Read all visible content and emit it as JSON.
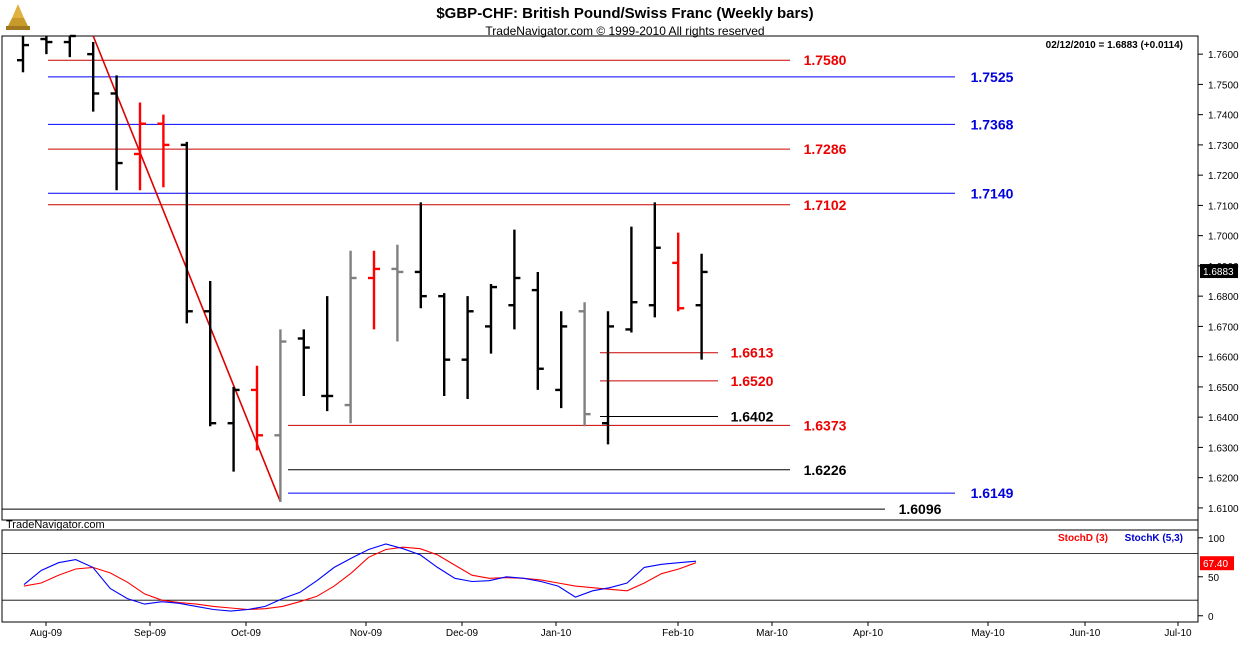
{
  "header": {
    "title": "$GBP-CHF:  British Pound/Swiss Franc  (Weekly bars)",
    "copyright": "TradeNavigator.com © 1999-2010 All rights reserved",
    "last_info": "02/12/2010 = 1.6883 (+0.0114)",
    "watermark": "TradeNavigator.com"
  },
  "colors": {
    "up_bar": "#000000",
    "down_bar": "#ff0000",
    "neutral_bar": "#808080",
    "support_line": "#0000ff",
    "resistance_line": "#cc0000",
    "trendline": "#dd0000",
    "stochD": "#ff0000",
    "stochK": "#0000ff"
  },
  "chart_data": [
    {
      "type": "ohlc",
      "title": "$GBP-CHF:  British Pound/Swiss Franc  (Weekly bars)",
      "ylim": [
        1.606,
        1.766
      ],
      "y_ticks": [
        "1.6100",
        "1.6200",
        "1.6300",
        "1.6400",
        "1.6500",
        "1.6600",
        "1.6700",
        "1.6800",
        "1.6900",
        "1.7000",
        "1.7100",
        "1.7200",
        "1.7300",
        "1.7400",
        "1.7500",
        "1.7600"
      ],
      "x_labels": [
        "Aug-09",
        "Sep-09",
        "Oct-09",
        "Nov-09",
        "Dec-09",
        "Jan-10",
        "Feb-10",
        "Mar-10",
        "Apr-10",
        "May-10",
        "Jun-10",
        "Jul-10"
      ],
      "last_price": "1.6883",
      "bars": [
        {
          "week": 0,
          "open": 1.758,
          "high": 1.767,
          "low": 1.754,
          "close": 1.763,
          "color": "black"
        },
        {
          "week": 1,
          "open": 1.765,
          "high": 1.769,
          "low": 1.76,
          "close": 1.764,
          "color": "black"
        },
        {
          "week": 2,
          "open": 1.764,
          "high": 1.768,
          "low": 1.759,
          "close": 1.766,
          "color": "black"
        },
        {
          "week": 3,
          "open": 1.76,
          "high": 1.764,
          "low": 1.741,
          "close": 1.747,
          "color": "black"
        },
        {
          "week": 4,
          "open": 1.747,
          "high": 1.753,
          "low": 1.715,
          "close": 1.724,
          "color": "black"
        },
        {
          "week": 5,
          "open": 1.727,
          "high": 1.744,
          "low": 1.715,
          "close": 1.737,
          "color": "red"
        },
        {
          "week": 6,
          "open": 1.737,
          "high": 1.74,
          "low": 1.716,
          "close": 1.73,
          "color": "red"
        },
        {
          "week": 7,
          "open": 1.73,
          "high": 1.731,
          "low": 1.671,
          "close": 1.675,
          "color": "black"
        },
        {
          "week": 8,
          "open": 1.675,
          "high": 1.685,
          "low": 1.637,
          "close": 1.638,
          "color": "black"
        },
        {
          "week": 9,
          "open": 1.638,
          "high": 1.65,
          "low": 1.622,
          "close": 1.649,
          "color": "black"
        },
        {
          "week": 10,
          "open": 1.649,
          "high": 1.657,
          "low": 1.629,
          "close": 1.634,
          "color": "red"
        },
        {
          "week": 11,
          "open": 1.634,
          "high": 1.669,
          "low": 1.612,
          "close": 1.665,
          "color": "gray"
        },
        {
          "week": 12,
          "open": 1.666,
          "high": 1.669,
          "low": 1.647,
          "close": 1.663,
          "color": "black"
        },
        {
          "week": 13,
          "open": 1.647,
          "high": 1.68,
          "low": 1.642,
          "close": 1.647,
          "color": "black"
        },
        {
          "week": 14,
          "open": 1.644,
          "high": 1.695,
          "low": 1.638,
          "close": 1.686,
          "color": "gray"
        },
        {
          "week": 15,
          "open": 1.686,
          "high": 1.695,
          "low": 1.669,
          "close": 1.689,
          "color": "red"
        },
        {
          "week": 16,
          "open": 1.689,
          "high": 1.697,
          "low": 1.665,
          "close": 1.688,
          "color": "gray"
        },
        {
          "week": 17,
          "open": 1.688,
          "high": 1.711,
          "low": 1.676,
          "close": 1.68,
          "color": "black"
        },
        {
          "week": 18,
          "open": 1.68,
          "high": 1.681,
          "low": 1.647,
          "close": 1.659,
          "color": "black"
        },
        {
          "week": 19,
          "open": 1.659,
          "high": 1.68,
          "low": 1.646,
          "close": 1.675,
          "color": "black"
        },
        {
          "week": 20,
          "open": 1.67,
          "high": 1.684,
          "low": 1.661,
          "close": 1.683,
          "color": "black"
        },
        {
          "week": 21,
          "open": 1.677,
          "high": 1.702,
          "low": 1.669,
          "close": 1.686,
          "color": "black"
        },
        {
          "week": 22,
          "open": 1.682,
          "high": 1.688,
          "low": 1.649,
          "close": 1.656,
          "color": "black"
        },
        {
          "week": 23,
          "open": 1.649,
          "high": 1.675,
          "low": 1.643,
          "close": 1.67,
          "color": "black"
        },
        {
          "week": 24,
          "open": 1.675,
          "high": 1.678,
          "low": 1.637,
          "close": 1.641,
          "color": "gray"
        },
        {
          "week": 25,
          "open": 1.638,
          "high": 1.675,
          "low": 1.631,
          "close": 1.67,
          "color": "black"
        },
        {
          "week": 26,
          "open": 1.669,
          "high": 1.703,
          "low": 1.668,
          "close": 1.678,
          "color": "black"
        },
        {
          "week": 27,
          "open": 1.677,
          "high": 1.711,
          "low": 1.673,
          "close": 1.696,
          "color": "black"
        },
        {
          "week": 28,
          "open": 1.691,
          "high": 1.701,
          "low": 1.675,
          "close": 1.676,
          "color": "red"
        },
        {
          "week": 29,
          "open": 1.677,
          "high": 1.694,
          "low": 1.659,
          "close": 1.688,
          "color": "black"
        }
      ],
      "levels": [
        {
          "value": 1.758,
          "label": "1.7580",
          "color": "red"
        },
        {
          "value": 1.7525,
          "label": "1.7525",
          "color": "blue"
        },
        {
          "value": 1.7368,
          "label": "1.7368",
          "color": "blue"
        },
        {
          "value": 1.7286,
          "label": "1.7286",
          "color": "red"
        },
        {
          "value": 1.714,
          "label": "1.7140",
          "color": "blue"
        },
        {
          "value": 1.7102,
          "label": "1.7102",
          "color": "red"
        },
        {
          "value": 1.6613,
          "label": "1.6613",
          "color": "red"
        },
        {
          "value": 1.652,
          "label": "1.6520",
          "color": "red"
        },
        {
          "value": 1.6402,
          "label": "1.6402",
          "color": "black"
        },
        {
          "value": 1.6373,
          "label": "1.6373",
          "color": "red"
        },
        {
          "value": 1.6226,
          "label": "1.6226",
          "color": "black"
        },
        {
          "value": 1.6149,
          "label": "1.6149",
          "color": "blue"
        },
        {
          "value": 1.6096,
          "label": "1.6096",
          "color": "black"
        }
      ],
      "trendline": {
        "start_week": 3,
        "start_value": 1.766,
        "end_week": 11,
        "end_value": 1.612
      }
    },
    {
      "type": "line",
      "legend": [
        "StochD (3)",
        "StochK (5,3)"
      ],
      "ylim": [
        -8,
        110
      ],
      "y_ticks": [
        "100",
        "50",
        "0"
      ],
      "ref_lines": [
        80,
        20
      ],
      "last_value": "67.40",
      "series": [
        {
          "name": "StochD (3)",
          "values": [
            38,
            42,
            52,
            60,
            62,
            55,
            43,
            28,
            20,
            17,
            15,
            12,
            10,
            8,
            9,
            12,
            18,
            25,
            38,
            55,
            75,
            85,
            88,
            86,
            78,
            65,
            52,
            48,
            49,
            48,
            46,
            42,
            38,
            36,
            34,
            32,
            42,
            54,
            60,
            68
          ]
        },
        {
          "name": "StochK (5,3)",
          "values": [
            40,
            58,
            68,
            72,
            62,
            35,
            22,
            15,
            18,
            16,
            12,
            8,
            6,
            8,
            12,
            22,
            30,
            45,
            62,
            74,
            85,
            92,
            86,
            78,
            62,
            48,
            44,
            45,
            50,
            48,
            44,
            38,
            24,
            32,
            36,
            42,
            62,
            66,
            68,
            70
          ]
        }
      ]
    }
  ]
}
